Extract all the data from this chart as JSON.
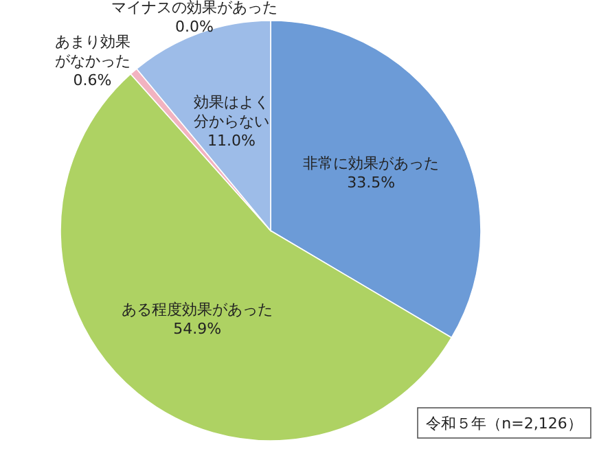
{
  "chart_data": {
    "type": "pie",
    "categories": [
      "非常に効果があった",
      "ある程度効果があった",
      "あまり効果がなかった",
      "マイナスの効果があった",
      "効果はよく分からない"
    ],
    "values": [
      33.5,
      54.9,
      0.6,
      0.0,
      11.0
    ],
    "colors": [
      "#6c9bd7",
      "#aed263",
      "#f2b3c0",
      "#d9d9d9",
      "#9dbce8"
    ],
    "value_labels": [
      "33.5%",
      "54.9%",
      "0.6%",
      "0.0%",
      "11.0%"
    ],
    "annotations": [
      "令和５年（n=2,126）"
    ],
    "legend": false
  }
}
